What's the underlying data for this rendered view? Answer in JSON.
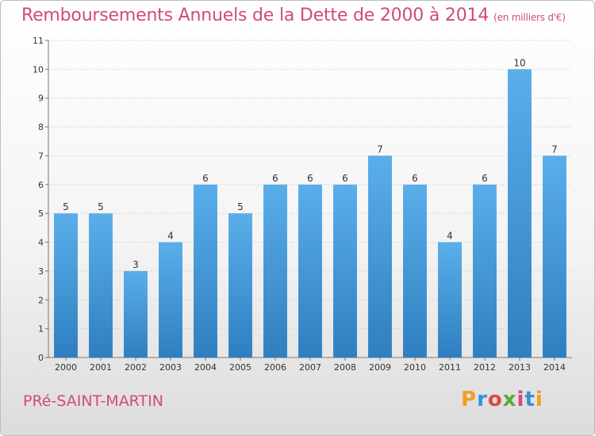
{
  "header": {
    "title": "Remboursements Annuels de la Dette de 2000 à 2014",
    "unit": "(en milliers d'€)"
  },
  "footer": {
    "commune": "PRé-SAINT-MARTIN",
    "logo_text": "Proxiti"
  },
  "colors": {
    "title": "#d24a7a",
    "bar_top": "#5aaeea",
    "bar_bottom": "#2f7fc0"
  },
  "chart_data": {
    "type": "bar",
    "title": "Remboursements Annuels de la Dette de 2000 à 2014",
    "subtitle": "(en milliers d'€)",
    "xlabel": "",
    "ylabel": "",
    "categories": [
      "2000",
      "2001",
      "2002",
      "2003",
      "2004",
      "2005",
      "2006",
      "2007",
      "2008",
      "2009",
      "2010",
      "2011",
      "2012",
      "2013",
      "2014"
    ],
    "values": [
      5,
      5,
      3,
      4,
      6,
      5,
      6,
      6,
      6,
      7,
      6,
      4,
      6,
      10,
      7
    ],
    "ylim": [
      0,
      11
    ],
    "yticks": [
      0,
      1,
      2,
      3,
      4,
      5,
      6,
      7,
      8,
      9,
      10,
      11
    ],
    "grid": true,
    "legend": "none"
  }
}
